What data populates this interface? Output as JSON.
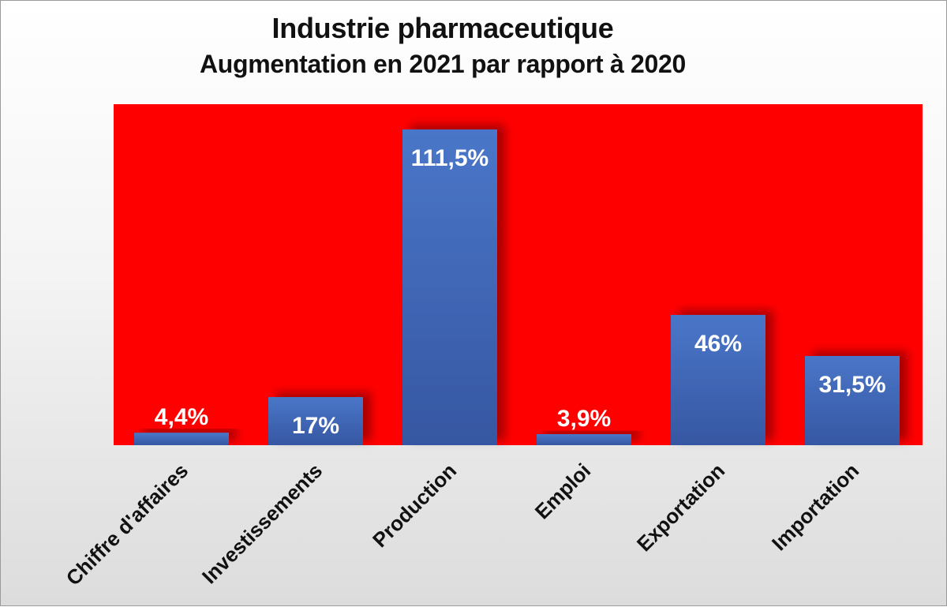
{
  "chart_data": {
    "type": "bar",
    "title": "Industrie pharmaceutique",
    "subtitle": "Augmentation en 2021 par rapport à 2020",
    "categories": [
      "Chiffre d'affaires",
      "Investissements",
      "Production",
      "Emploi",
      "Exportation",
      "Importation"
    ],
    "values": [
      4.4,
      17,
      111.5,
      3.9,
      46,
      31.5
    ],
    "data_labels": [
      "4,4%",
      "17%",
      "111,5%",
      "3,9%",
      "46%",
      "31,5%"
    ],
    "unit": "%",
    "ylim": [
      0,
      120
    ],
    "grid": false,
    "legend": "none",
    "colors": {
      "plot_background": "#ff0000",
      "bar_top": "#4a76c8",
      "bar_bottom": "#3657a2",
      "label_text": "#ffffff"
    }
  }
}
